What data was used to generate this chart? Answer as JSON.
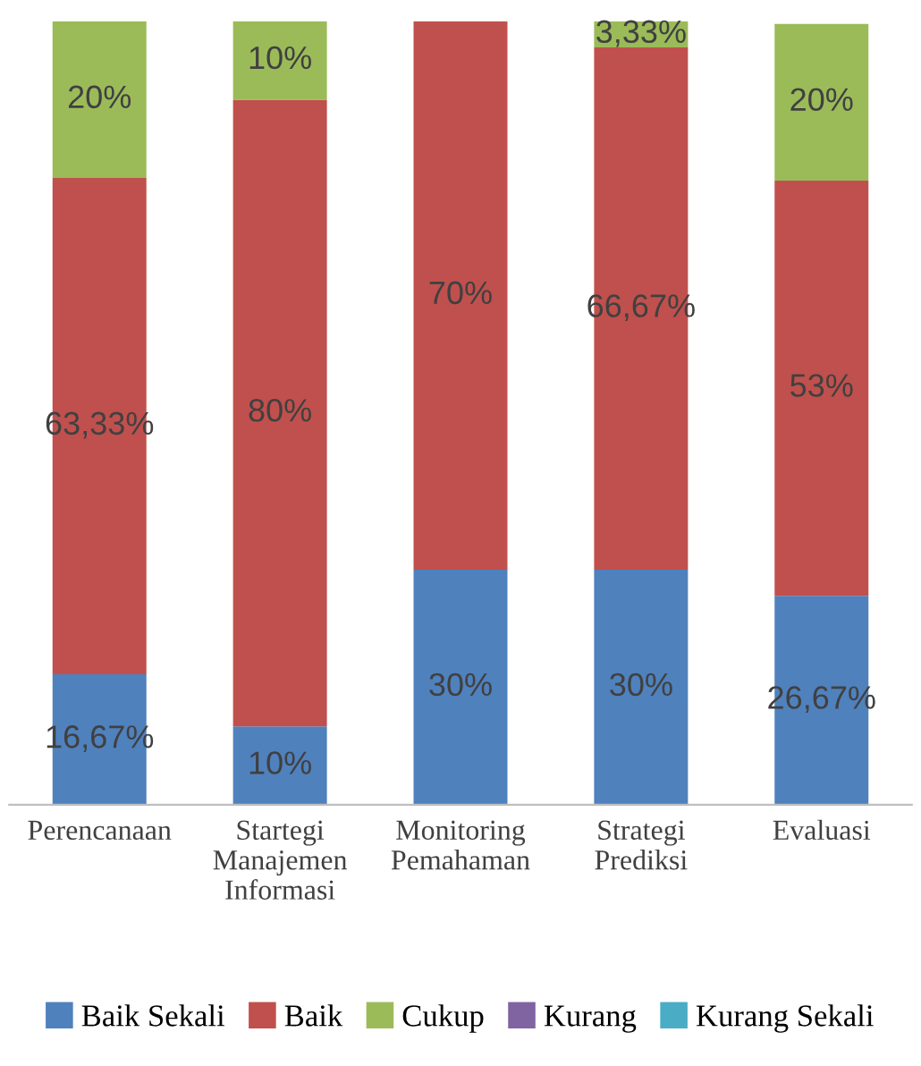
{
  "chart_data": {
    "type": "bar",
    "stacked": true,
    "categories": [
      "Perencanaan",
      "Startegi\nManajemen\nInformasi",
      "Monitoring\nPemahaman",
      "Strategi\nPrediksi",
      "Evaluasi"
    ],
    "series": [
      {
        "name": "Baik Sekali",
        "color": "#4f81bd",
        "values": [
          16.67,
          10,
          30,
          30,
          26.67
        ],
        "value_labels": [
          "16,67%",
          "10%",
          "30%",
          "30%",
          "26,67%"
        ]
      },
      {
        "name": "Baik",
        "color": "#c0504d",
        "values": [
          63.33,
          80,
          70,
          66.67,
          53
        ],
        "value_labels": [
          "63,33%",
          "80%",
          "70%",
          "66,67%",
          "53%"
        ]
      },
      {
        "name": "Cukup",
        "color": "#9bbb59",
        "values": [
          20,
          10,
          0,
          3.33,
          20
        ],
        "value_labels": [
          "20%",
          "10%",
          null,
          "3,33%",
          "20%"
        ]
      },
      {
        "name": "Kurang",
        "color": "#8064a2",
        "values": [
          0,
          0,
          0,
          0,
          0
        ],
        "value_labels": [
          null,
          null,
          null,
          null,
          null
        ]
      },
      {
        "name": "Kurang Sekali",
        "color": "#4bacc6",
        "values": [
          0,
          0,
          0,
          0,
          0
        ],
        "value_labels": [
          null,
          null,
          null,
          null,
          null
        ]
      }
    ],
    "legend": "bottom"
  }
}
